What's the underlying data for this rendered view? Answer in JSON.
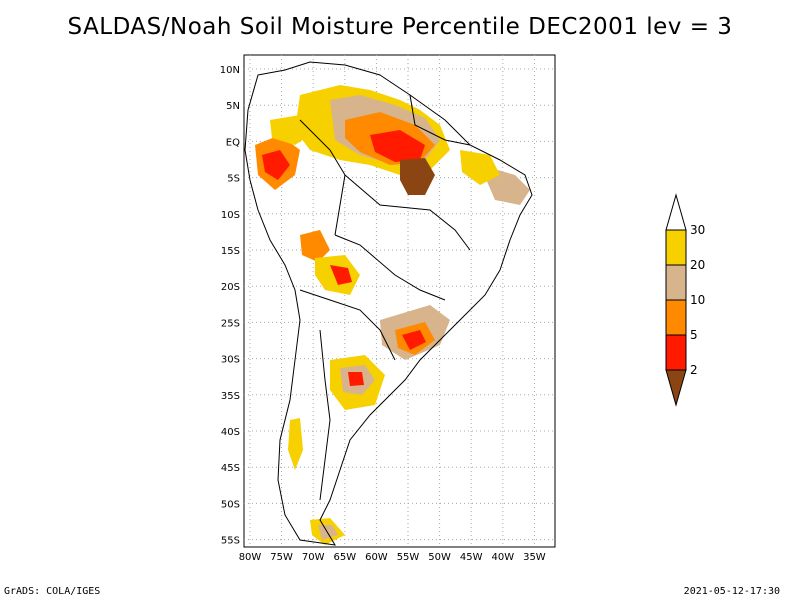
{
  "title": "SALDAS/Noah Soil Moisture Percentile DEC2001 lev = 3",
  "footer": {
    "left": "GrADS: COLA/IGES",
    "right": "2021-05-12-17:30"
  },
  "map": {
    "lat_labels": [
      "10N",
      "5N",
      "EQ",
      "5S",
      "10S",
      "15S",
      "20S",
      "25S",
      "30S",
      "35S",
      "40S",
      "45S",
      "50S",
      "55S"
    ],
    "lon_labels": [
      "80W",
      "75W",
      "70W",
      "65W",
      "60W",
      "55W",
      "50W",
      "45W",
      "40W",
      "35W"
    ]
  },
  "legend": {
    "labels": [
      "30",
      "20",
      "10",
      "5",
      "2"
    ],
    "colors": {
      "gt30": "#ffffff",
      "20_30": "#f7d000",
      "10_20": "#d7b48c",
      "5_10": "#ff8a00",
      "2_5": "#ff1a00",
      "lt2": "#8b4513"
    }
  },
  "colors": {
    "grid": "#aaaaaa",
    "border": "#000000",
    "frame": "#000000"
  }
}
